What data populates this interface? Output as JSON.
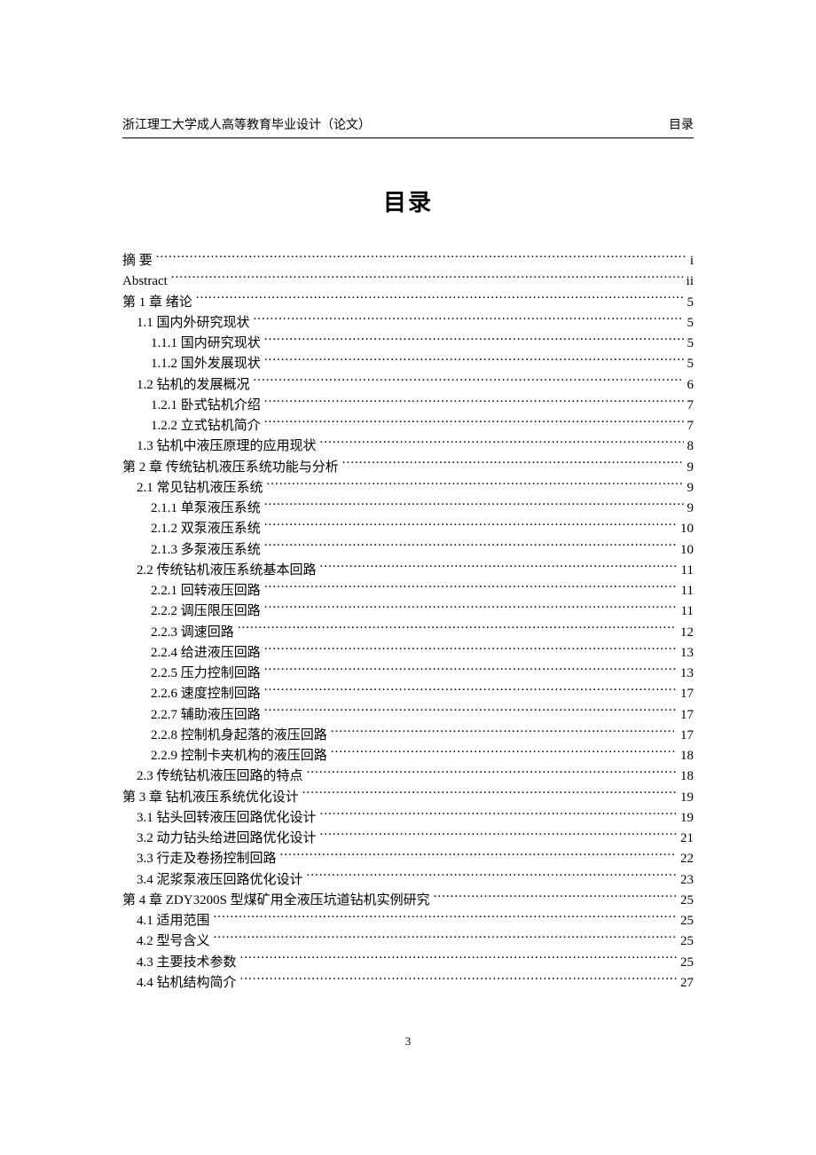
{
  "header": {
    "left": "浙江理工大学成人高等教育毕业设计（论文）",
    "right": "目录"
  },
  "title": "目录",
  "footer_page": "3",
  "toc": [
    {
      "level": 0,
      "label": "摘   要",
      "page": "i",
      "spaced": true
    },
    {
      "level": 0,
      "label": "Abstract",
      "page": "ii",
      "abstract": true
    },
    {
      "level": 0,
      "label": "第 1 章 绪论",
      "page": "5"
    },
    {
      "level": 1,
      "label": "1.1 国内外研究现状",
      "page": "5"
    },
    {
      "level": 2,
      "label": "1.1.1 国内研究现状",
      "page": "5"
    },
    {
      "level": 2,
      "label": "1.1.2 国外发展现状",
      "page": "5"
    },
    {
      "level": 1,
      "label": "1.2 钻机的发展概况",
      "page": "6"
    },
    {
      "level": 2,
      "label": "1.2.1 卧式钻机介绍",
      "page": "7"
    },
    {
      "level": 2,
      "label": "1.2.2 立式钻机简介",
      "page": "7"
    },
    {
      "level": 1,
      "label": "1.3 钻机中液压原理的应用现状",
      "page": "8"
    },
    {
      "level": 0,
      "label": "第 2 章 传统钻机液压系统功能与分析",
      "page": "9"
    },
    {
      "level": 1,
      "label": "2.1 常见钻机液压系统",
      "page": "9"
    },
    {
      "level": 2,
      "label": "2.1.1 单泵液压系统",
      "page": "9"
    },
    {
      "level": 2,
      "label": "2.1.2 双泵液压系统",
      "page": "10"
    },
    {
      "level": 2,
      "label": "2.1.3 多泵液压系统",
      "page": "10"
    },
    {
      "level": 1,
      "label": "2.2 传统钻机液压系统基本回路",
      "page": "11"
    },
    {
      "level": 2,
      "label": "2.2.1 回转液压回路",
      "page": "11"
    },
    {
      "level": 2,
      "label": "2.2.2 调压限压回路",
      "page": "11"
    },
    {
      "level": 2,
      "label": "2.2.3 调速回路",
      "page": "12"
    },
    {
      "level": 2,
      "label": "2.2.4 给进液压回路",
      "page": "13"
    },
    {
      "level": 2,
      "label": "2.2.5 压力控制回路",
      "page": "13"
    },
    {
      "level": 2,
      "label": "2.2.6 速度控制回路",
      "page": "17"
    },
    {
      "level": 2,
      "label": "2.2.7 辅助液压回路",
      "page": "17"
    },
    {
      "level": 2,
      "label": "2.2.8 控制机身起落的液压回路",
      "page": "17"
    },
    {
      "level": 2,
      "label": "2.2.9 控制卡夹机构的液压回路",
      "page": "18"
    },
    {
      "level": 1,
      "label": "2.3 传统钻机液压回路的特点",
      "page": "18"
    },
    {
      "level": 0,
      "label": "第 3 章 钻机液压系统优化设计",
      "page": "19"
    },
    {
      "level": 1,
      "label": "3.1 钻头回转液压回路优化设计",
      "page": "19"
    },
    {
      "level": 1,
      "label": "3.2 动力钻头给进回路优化设计",
      "page": "21"
    },
    {
      "level": 1,
      "label": "3.3 行走及卷扬控制回路",
      "page": "22"
    },
    {
      "level": 1,
      "label": "3.4 泥浆泵液压回路优化设计",
      "page": "23"
    },
    {
      "level": 0,
      "label": "第 4 章 ZDY3200S 型煤矿用全液压坑道钻机实例研究",
      "page": "25"
    },
    {
      "level": 1,
      "label": "4.1 适用范围",
      "page": "25"
    },
    {
      "level": 1,
      "label": "4.2 型号含义",
      "page": "25"
    },
    {
      "level": 1,
      "label": "4.3 主要技术参数",
      "page": "25"
    },
    {
      "level": 1,
      "label": "4.4 钻机结构简介",
      "page": "27"
    }
  ]
}
